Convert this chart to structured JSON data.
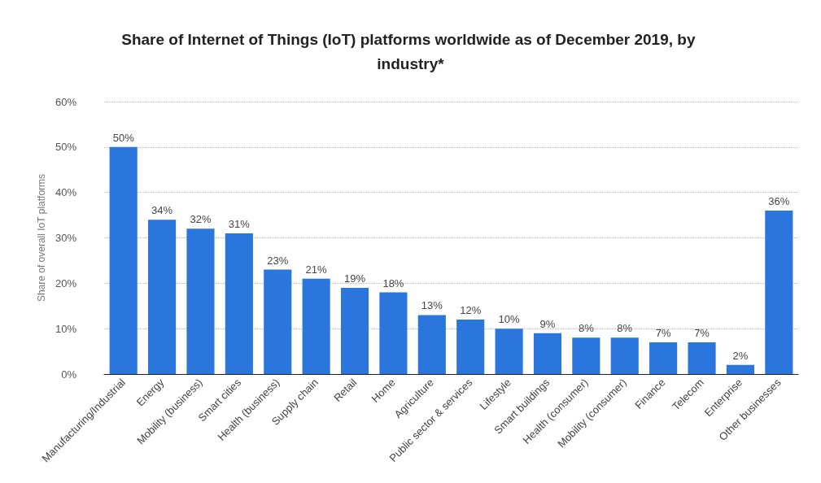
{
  "chart_data": {
    "type": "bar",
    "title": "Share of Internet of Things (IoT) platforms worldwide as of December 2019, by industry*",
    "ylabel": "Share of overall IoT platforms",
    "categories": [
      "Manufacturing/Industrial",
      "Energy",
      "Mobility (business)",
      "Smart cities",
      "Health (business)",
      "Supply chain",
      "Retail",
      "Home",
      "Agriculture",
      "Public sector & services",
      "Lifestyle",
      "Smart buildings",
      "Health (consumer)",
      "Mobility (consumer)",
      "Finance",
      "Telecom",
      "Enterprise",
      "Other businesses"
    ],
    "values": [
      50,
      34,
      32,
      31,
      23,
      21,
      19,
      18,
      13,
      12,
      10,
      9,
      8,
      8,
      7,
      7,
      2,
      36
    ],
    "value_labels": [
      "50%",
      "34%",
      "32%",
      "31%",
      "23%",
      "21%",
      "19%",
      "18%",
      "13%",
      "12%",
      "10%",
      "9%",
      "8%",
      "8%",
      "7%",
      "7%",
      "2%",
      "36%"
    ],
    "color": "#2a76dd",
    "ylim": [
      0,
      60
    ],
    "yticks": [
      {
        "value": 0,
        "label": "0%"
      },
      {
        "value": 10,
        "label": "10%"
      },
      {
        "value": 20,
        "label": "20%"
      },
      {
        "value": 30,
        "label": "30%"
      },
      {
        "value": 40,
        "label": "40%"
      },
      {
        "value": 50,
        "label": "50%"
      },
      {
        "value": 60,
        "label": "60%"
      }
    ],
    "grid": "y"
  }
}
